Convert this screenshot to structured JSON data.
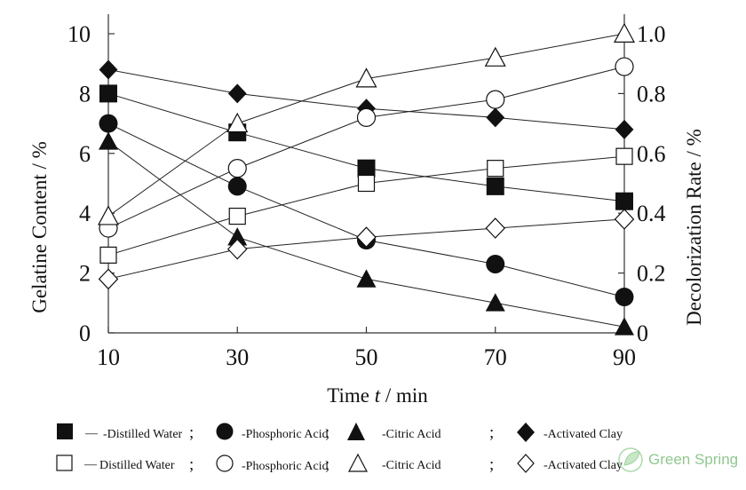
{
  "chart_data": {
    "type": "line",
    "x_title_prefix": "Time ",
    "x_title_var": "t",
    "x_title_suffix": " / min",
    "ylabel_left": "Gelatine Content / %",
    "ylabel_right": "Decolorization Rate / %",
    "x": [
      10,
      30,
      50,
      70,
      90
    ],
    "x_ticks": [
      "10",
      "30",
      "50",
      "70",
      "90"
    ],
    "xlim": [
      10,
      90
    ],
    "ylim_left": [
      0,
      10
    ],
    "ylim_right": [
      0,
      1.0
    ],
    "y_ticks_left": [
      "0",
      "2",
      "4",
      "6",
      "8",
      "10"
    ],
    "y_ticks_right": [
      "0",
      "0.2",
      "0.4",
      "0.6",
      "0.8",
      "1.0"
    ],
    "grid": false,
    "legend_position": "bottom",
    "series": [
      {
        "name": "-Distilled Water",
        "axis": "left",
        "marker": "square",
        "filled": true,
        "values": [
          8.0,
          6.7,
          5.5,
          4.9,
          4.4
        ]
      },
      {
        "name": "-Phosphoric Acid",
        "axis": "left",
        "marker": "circle",
        "filled": true,
        "values": [
          7.0,
          4.9,
          3.1,
          2.3,
          1.2
        ]
      },
      {
        "name": "-Citric Acid",
        "axis": "left",
        "marker": "triangle",
        "filled": true,
        "values": [
          6.4,
          3.2,
          1.8,
          1.0,
          0.2
        ]
      },
      {
        "name": "-Activated Clay",
        "axis": "left",
        "marker": "diamond",
        "filled": true,
        "values": [
          8.8,
          8.0,
          7.5,
          7.2,
          6.8
        ]
      },
      {
        "name": "Distilled Water",
        "axis": "right",
        "marker": "square",
        "filled": false,
        "values": [
          0.26,
          0.39,
          0.5,
          0.55,
          0.59
        ]
      },
      {
        "name": "-Phosphoric Acid",
        "axis": "right",
        "marker": "circle",
        "filled": false,
        "values": [
          0.35,
          0.55,
          0.72,
          0.78,
          0.89
        ]
      },
      {
        "name": "-Citric Acid",
        "axis": "right",
        "marker": "triangle",
        "filled": false,
        "values": [
          0.39,
          0.7,
          0.85,
          0.92,
          1.0
        ]
      },
      {
        "name": "-Activated Clay",
        "axis": "right",
        "marker": "diamond",
        "filled": false,
        "values": [
          0.18,
          0.28,
          0.32,
          0.35,
          0.38
        ]
      }
    ],
    "legend_separator": ";",
    "legend_dashes": [
      "—",
      "—"
    ]
  },
  "watermark": {
    "text": "Green Spring",
    "icon": "green-leaf-logo",
    "color": "#7cbf7c"
  }
}
